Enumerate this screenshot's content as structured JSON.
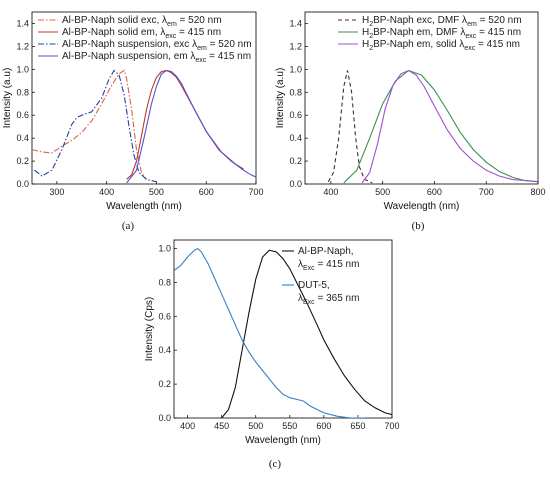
{
  "chart_data": [
    {
      "type": "line",
      "caption": "(a)",
      "xlabel": "Wavelength (nm)",
      "ylabel": "Intensity (a.u)",
      "xlim": [
        250,
        700
      ],
      "ylim": [
        0,
        1.5
      ],
      "xticks": [
        300,
        400,
        500,
        600,
        700
      ],
      "yticks": [
        0.0,
        0.2,
        0.4,
        0.6,
        0.8,
        1.0,
        1.2,
        1.4
      ],
      "legend_position": "top-left",
      "series": [
        {
          "legend": {
            "base": "Al-BP-Naph solid exc, λ",
            "sub": "em",
            "tail": " = 520 nm"
          },
          "color": "#d9604a",
          "style": "dashdot",
          "x": [
            250,
            270,
            290,
            310,
            330,
            350,
            370,
            390,
            410,
            425,
            435,
            440,
            450,
            460,
            470,
            480
          ],
          "y": [
            0.3,
            0.28,
            0.27,
            0.33,
            0.38,
            0.45,
            0.55,
            0.7,
            0.86,
            0.96,
            0.99,
            0.92,
            0.65,
            0.3,
            0.1,
            0.04
          ]
        },
        {
          "legend": {
            "base": "Al-BP-Naph solid em, λ",
            "sub": "exc",
            "tail": " = 415 nm"
          },
          "color": "#c0392b",
          "style": "solid",
          "x": [
            440,
            450,
            460,
            470,
            480,
            490,
            500,
            510,
            520,
            530,
            540,
            550,
            570,
            600,
            630,
            660,
            675
          ],
          "y": [
            0.04,
            0.08,
            0.2,
            0.42,
            0.65,
            0.82,
            0.93,
            0.98,
            0.99,
            0.97,
            0.93,
            0.86,
            0.7,
            0.46,
            0.28,
            0.17,
            0.13
          ]
        },
        {
          "legend": {
            "base": "Al-BP-Naph suspension, exc λ",
            "sub": "em",
            "tail": " = 520 nm"
          },
          "color": "#2a3fa0",
          "style": "dashdot",
          "x": [
            255,
            270,
            290,
            310,
            330,
            340,
            350,
            370,
            390,
            405,
            415,
            425,
            435,
            445,
            455,
            465,
            480,
            500
          ],
          "y": [
            0.12,
            0.07,
            0.12,
            0.3,
            0.52,
            0.58,
            0.6,
            0.63,
            0.75,
            0.92,
            0.99,
            0.95,
            0.78,
            0.5,
            0.25,
            0.1,
            0.04,
            0.02
          ]
        },
        {
          "legend": {
            "base": "Al-BP-Naph suspension, em λ",
            "sub": "exc",
            "tail": " = 415 nm"
          },
          "color": "#5a4fcf",
          "style": "solid",
          "x": [
            440,
            460,
            475,
            490,
            500,
            510,
            520,
            530,
            540,
            550,
            560,
            580,
            600,
            625,
            650,
            675,
            690,
            700
          ],
          "y": [
            0.01,
            0.12,
            0.4,
            0.7,
            0.85,
            0.96,
            0.99,
            0.98,
            0.94,
            0.88,
            0.79,
            0.62,
            0.46,
            0.3,
            0.2,
            0.12,
            0.08,
            0.06
          ]
        }
      ]
    },
    {
      "type": "line",
      "caption": "(b)",
      "xlabel": "Wavelength (nm)",
      "ylabel": "Intensity (a.u)",
      "xlim": [
        350,
        800
      ],
      "ylim": [
        0,
        1.5
      ],
      "xticks": [
        400,
        500,
        600,
        700,
        800
      ],
      "yticks": [
        0.0,
        0.2,
        0.4,
        0.6,
        0.8,
        1.0,
        1.2,
        1.4
      ],
      "legend_position": "top-right",
      "series": [
        {
          "legend": {
            "base": "H",
            "sub": "2",
            "tail": "BP-Naph exc, DMF λ",
            "sub2": "em",
            "tail2": " = 520 nm"
          },
          "color": "#333333",
          "style": "dashed",
          "x": [
            395,
            405,
            415,
            425,
            432,
            440,
            448,
            455,
            465,
            480
          ],
          "y": [
            0.02,
            0.1,
            0.4,
            0.85,
            0.99,
            0.8,
            0.4,
            0.15,
            0.04,
            0.01
          ]
        },
        {
          "legend": {
            "base": "H",
            "sub": "2",
            "tail": "BP-Naph em, DMF λ",
            "sub2": "exc",
            "tail2": " = 415 nm"
          },
          "color": "#3f8f4f",
          "style": "solid",
          "x": [
            425,
            450,
            475,
            500,
            525,
            550,
            575,
            600,
            625,
            650,
            675,
            700,
            725,
            750,
            775,
            800
          ],
          "y": [
            0.01,
            0.12,
            0.4,
            0.7,
            0.9,
            0.99,
            0.95,
            0.82,
            0.64,
            0.45,
            0.3,
            0.19,
            0.11,
            0.06,
            0.03,
            0.02
          ]
        },
        {
          "legend": {
            "base": "H",
            "sub": "2",
            "tail": "BP-Naph em, solid λ",
            "sub2": "exc",
            "tail2": " = 415 nm"
          },
          "color": "#a04fcf",
          "style": "solid",
          "x": [
            460,
            475,
            490,
            505,
            520,
            535,
            550,
            565,
            580,
            600,
            625,
            650,
            675,
            700,
            725,
            750,
            775,
            800
          ],
          "y": [
            0.01,
            0.1,
            0.35,
            0.66,
            0.86,
            0.96,
            0.99,
            0.95,
            0.85,
            0.68,
            0.47,
            0.31,
            0.2,
            0.12,
            0.07,
            0.04,
            0.03,
            0.02
          ]
        }
      ]
    },
    {
      "type": "line",
      "caption": "(c)",
      "xlabel": "Wavelength (nm)",
      "ylabel": "Intensity (Cps)",
      "xlim": [
        380,
        700
      ],
      "ylim": [
        0,
        1.05
      ],
      "xticks": [
        400,
        450,
        500,
        550,
        600,
        650,
        700
      ],
      "yticks": [
        0.0,
        0.2,
        0.4,
        0.6,
        0.8,
        1.0
      ],
      "legend_position": "top-right",
      "series": [
        {
          "legend": {
            "base": "Al-BP-Naph,"
          },
          "legend_line2": {
            "base": "λ",
            "sub": "Exc",
            "tail": " = 415 nm"
          },
          "color": "#111111",
          "style": "solid",
          "x": [
            450,
            460,
            470,
            480,
            490,
            500,
            510,
            520,
            530,
            540,
            550,
            560,
            575,
            590,
            600,
            615,
            630,
            645,
            660,
            675,
            690,
            700
          ],
          "y": [
            0.0,
            0.05,
            0.18,
            0.4,
            0.62,
            0.82,
            0.95,
            0.99,
            0.98,
            0.94,
            0.88,
            0.8,
            0.68,
            0.55,
            0.46,
            0.35,
            0.25,
            0.17,
            0.1,
            0.06,
            0.03,
            0.02
          ]
        },
        {
          "legend": {
            "base": "DUT-5,"
          },
          "legend_line2": {
            "base": "λ",
            "sub": "Exc",
            "tail": " = 365 nm"
          },
          "color": "#3a7fc4",
          "style": "solid",
          "x": [
            380,
            390,
            400,
            410,
            415,
            420,
            430,
            440,
            450,
            460,
            470,
            480,
            490,
            500,
            510,
            520,
            530,
            540,
            550,
            560,
            570,
            580,
            590,
            600,
            620,
            640,
            660
          ],
          "y": [
            0.87,
            0.9,
            0.95,
            0.99,
            1.0,
            0.98,
            0.91,
            0.82,
            0.73,
            0.64,
            0.55,
            0.46,
            0.39,
            0.33,
            0.28,
            0.23,
            0.18,
            0.14,
            0.12,
            0.11,
            0.1,
            0.07,
            0.05,
            0.03,
            0.01,
            0.0,
            0.0
          ]
        }
      ]
    }
  ]
}
